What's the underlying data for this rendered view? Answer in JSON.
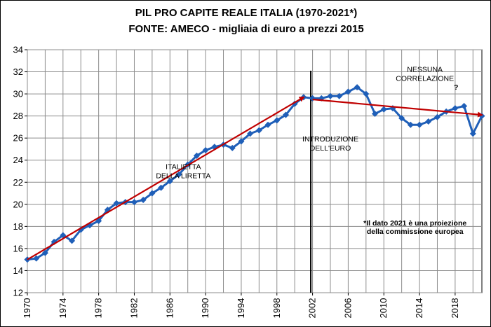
{
  "chart_data": {
    "type": "line",
    "title": "PIL PRO CAPITE REALE ITALIA (1970-2021*)",
    "subtitle": "FONTE: AMECO - migliaia di euro a prezzi 2015",
    "xlabel": "",
    "ylabel": "",
    "xlim": [
      1970,
      2021
    ],
    "ylim": [
      12,
      34
    ],
    "grid": true,
    "x_ticks": [
      1970,
      1974,
      1978,
      1982,
      1986,
      1990,
      1994,
      1998,
      2002,
      2006,
      2010,
      2014,
      2018
    ],
    "x_tick_labels": [
      "1970",
      "1974",
      "1978",
      "1982",
      "1986",
      "1990",
      "1994",
      "1998",
      "2002",
      "2006",
      "2010",
      "2014",
      "2018"
    ],
    "y_ticks": [
      12,
      14,
      16,
      18,
      20,
      22,
      24,
      26,
      28,
      30,
      32,
      34
    ],
    "y_tick_labels": [
      "12",
      "14",
      "16",
      "18",
      "20",
      "22",
      "24",
      "26",
      "28",
      "30",
      "32",
      "34"
    ],
    "series": [
      {
        "name": "PIL pro capite reale",
        "color": "#1f5fb8",
        "x": [
          1970,
          1971,
          1972,
          1973,
          1974,
          1975,
          1976,
          1977,
          1978,
          1979,
          1980,
          1981,
          1982,
          1983,
          1984,
          1985,
          1986,
          1987,
          1988,
          1989,
          1990,
          1991,
          1992,
          1993,
          1994,
          1995,
          1996,
          1997,
          1998,
          1999,
          2000,
          2001,
          2002,
          2003,
          2004,
          2005,
          2006,
          2007,
          2008,
          2009,
          2010,
          2011,
          2012,
          2013,
          2014,
          2015,
          2016,
          2017,
          2018,
          2019,
          2020,
          2021
        ],
        "values": [
          15.0,
          15.1,
          15.6,
          16.6,
          17.2,
          16.7,
          17.7,
          18.1,
          18.5,
          19.5,
          20.1,
          20.2,
          20.2,
          20.4,
          21.0,
          21.5,
          22.1,
          22.7,
          23.6,
          24.4,
          24.9,
          25.2,
          25.4,
          25.1,
          25.7,
          26.4,
          26.7,
          27.2,
          27.6,
          28.1,
          29.1,
          29.7,
          29.6,
          29.6,
          29.8,
          29.8,
          30.2,
          30.6,
          30.0,
          28.2,
          28.6,
          28.7,
          27.8,
          27.2,
          27.2,
          27.5,
          27.9,
          28.4,
          28.7,
          28.9,
          26.4,
          28.0
        ]
      }
    ],
    "trend_lines": [
      {
        "name": "trend 1970-2001",
        "color": "#c00000",
        "from": [
          1970,
          15.0
        ],
        "to": [
          2001,
          29.7
        ]
      },
      {
        "name": "trend 2002-2021",
        "color": "#c00000",
        "from": [
          2002,
          29.5
        ],
        "to": [
          2021,
          28.1
        ]
      }
    ],
    "marker_line": {
      "x": 2001.8,
      "color": "#000000"
    },
    "annotations": [
      {
        "id": "italietta",
        "lines": [
          "ITALIETTA",
          "DELLA LIRETTA"
        ],
        "x": 1987.5,
        "y": 23.2
      },
      {
        "id": "introduzione",
        "lines": [
          "INTRODUZIONE",
          "DELL'EURO"
        ],
        "x": 2004.0,
        "y": 25.7
      },
      {
        "id": "nessuna",
        "lines": [
          "NESSUNA",
          "CORRELAZIONE"
        ],
        "x": 2014.6,
        "y": 32.0
      },
      {
        "id": "question",
        "lines": [
          "?"
        ],
        "x": 2018.1,
        "y": 30.4
      },
      {
        "id": "nota",
        "lines": [
          "*Il dato 2021 è una proiezione",
          "della commissione europea"
        ],
        "x": 2013.5,
        "y": 18.1
      }
    ]
  }
}
